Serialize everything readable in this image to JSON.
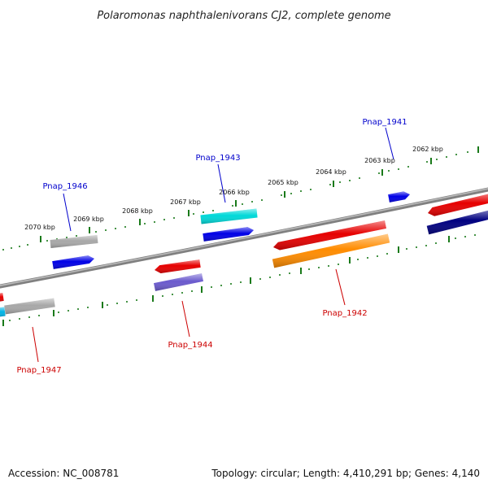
{
  "title": "Polaromonas naphthalenivorans CJ2, complete genome",
  "footer": {
    "accession": "Accession: NC_008781",
    "summary": "Topology: circular; Length: 4,410,291 bp; Genes: 4,140"
  },
  "colors": {
    "backbone": "#808080",
    "tick": "#1a7a1a",
    "forward_label": "#0000cc",
    "reverse_label": "#cc0000"
  },
  "kbp_labels": [
    "2070 kbp",
    "2069 kbp",
    "2068 kbp",
    "2067 kbp",
    "2066 kbp",
    "2065 kbp",
    "2064 kbp",
    "2063 kbp",
    "2062 kbp"
  ],
  "gene_labels": [
    {
      "id": "gene-label-pnap-1946",
      "text": "Pnap_1946",
      "strand": "forward"
    },
    {
      "id": "gene-label-pnap-1943",
      "text": "Pnap_1943",
      "strand": "forward"
    },
    {
      "id": "gene-label-pnap-1941",
      "text": "Pnap_1941",
      "strand": "forward"
    },
    {
      "id": "gene-label-pnap-1947",
      "text": "Pnap_1947",
      "strand": "reverse"
    },
    {
      "id": "gene-label-pnap-1944",
      "text": "Pnap_1944",
      "strand": "reverse"
    },
    {
      "id": "gene-label-pnap-1942",
      "text": "Pnap_1942",
      "strand": "reverse"
    }
  ],
  "features": [
    {
      "name": "feature-gray-forward",
      "color": "#a8a8a8",
      "direction": "none"
    },
    {
      "name": "feature-pnap-1946",
      "color": "#0000e6",
      "direction": "right"
    },
    {
      "name": "feature-cyan",
      "color": "#00d8d8",
      "direction": "none"
    },
    {
      "name": "feature-pnap-1943",
      "color": "#0000e6",
      "direction": "right"
    },
    {
      "name": "feature-pnap-1941",
      "color": "#0000e6",
      "direction": "right"
    },
    {
      "name": "feature-red-left-edge",
      "color": "#e60000",
      "direction": "left"
    },
    {
      "name": "feature-cyan-left-edge",
      "color": "#00b4e6",
      "direction": "none"
    },
    {
      "name": "feature-gray-reverse",
      "color": "#a8a8a8",
      "direction": "none"
    },
    {
      "name": "feature-pnap-1944-red",
      "color": "#e60000",
      "direction": "left"
    },
    {
      "name": "feature-pnap-1944",
      "color": "#6a5acd",
      "direction": "none"
    },
    {
      "name": "feature-pnap-1942-red",
      "color": "#e60000",
      "direction": "left"
    },
    {
      "name": "feature-pnap-1942",
      "color": "#ff8c00",
      "direction": "none"
    },
    {
      "name": "feature-red-right",
      "color": "#e60000",
      "direction": "left"
    },
    {
      "name": "feature-navy-right",
      "color": "#000080",
      "direction": "none"
    }
  ]
}
